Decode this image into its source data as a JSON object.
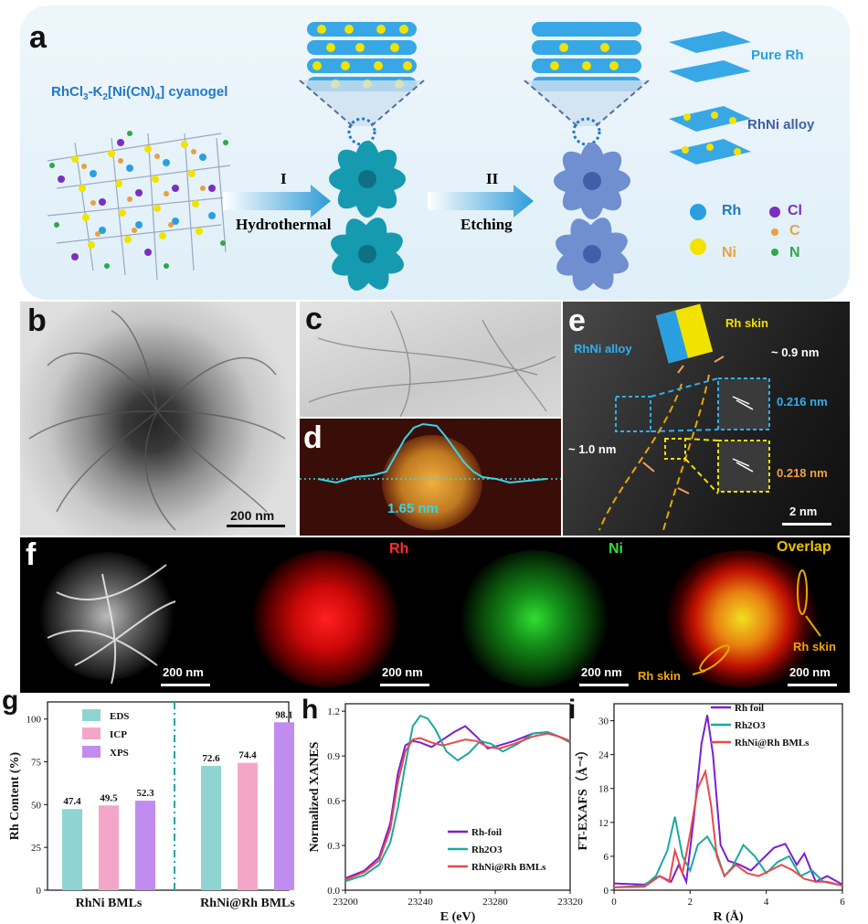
{
  "panel_a": {
    "letter": "a",
    "precursor_label": "RhCl3-K2[Ni(CN)4] cyanogel",
    "step1_roman": "I",
    "step1_label": "Hydrothermal",
    "step2_roman": "II",
    "step2_label": "Etching",
    "legend_pure": "Pure Rh",
    "legend_alloy": "RhNi alloy",
    "atoms": {
      "rh": "Rh",
      "ni": "Ni",
      "cl": "Cl",
      "c": "C",
      "n": "N"
    },
    "colors": {
      "rh": "#2a9fe0",
      "ni": "#f1e200",
      "cl": "#7a2fc0",
      "c": "#e8a040",
      "n": "#2ea84a",
      "title_blue": "#1f78c8"
    }
  },
  "panel_b": {
    "letter": "b",
    "scale": "200 nm"
  },
  "panel_c": {
    "letter": "c"
  },
  "panel_d": {
    "letter": "d",
    "thickness": "1.65 nm"
  },
  "panel_e": {
    "letter": "e",
    "alloy": "RhNi alloy",
    "skin": "Rh skin",
    "skin_thick": "~ 0.9 nm",
    "edge_thick": "~ 1.0 nm",
    "d1": "0.216 nm",
    "d2": "0.218 nm",
    "scale": "2 nm"
  },
  "panel_f": {
    "letter": "f",
    "maps": [
      "",
      "Rh",
      "Ni",
      "Overlap"
    ],
    "scale": "200 nm",
    "skin_label_1": "Rh skin",
    "skin_label_2": "Rh skin"
  },
  "chart_data": [
    {
      "type": "bar",
      "panel": "g",
      "categories": [
        "RhNi BMLs",
        "RhNi@Rh BMLs"
      ],
      "series": [
        {
          "name": "EDS",
          "values": [
            47.4,
            72.6
          ],
          "color": "#8fd3d3"
        },
        {
          "name": "ICP",
          "values": [
            49.5,
            74.4
          ],
          "color": "#f4a6c9"
        },
        {
          "name": "XPS",
          "values": [
            52.3,
            98.1
          ],
          "color": "#c08cf0"
        }
      ],
      "ylabel": "Rh Content (%)",
      "ylim": [
        0,
        110
      ],
      "yticks": [
        0,
        25,
        50,
        75,
        100
      ],
      "value_labels": [
        "47.4",
        "49.5",
        "52.3",
        "72.6",
        "74.4",
        "98.1"
      ]
    },
    {
      "type": "line",
      "panel": "h",
      "xlabel": "E (eV)",
      "ylabel": "Normalized XANES",
      "xlim": [
        23200,
        23320
      ],
      "ylim": [
        0,
        1.25
      ],
      "xticks": [
        23200,
        23240,
        23280,
        23320
      ],
      "yticks": [
        0.0,
        0.3,
        0.6,
        0.9,
        1.2
      ],
      "series": [
        {
          "name": "Rh-foil",
          "color": "#7b1fd0",
          "x": [
            23200,
            23210,
            23218,
            23224,
            23228,
            23232,
            23236,
            23240,
            23246,
            23252,
            23258,
            23264,
            23270,
            23276,
            23282,
            23290,
            23300,
            23308,
            23314,
            23320
          ],
          "y": [
            0.08,
            0.13,
            0.22,
            0.45,
            0.78,
            0.97,
            1.0,
            0.99,
            0.96,
            1.01,
            1.06,
            1.1,
            1.03,
            0.95,
            0.97,
            1.0,
            1.05,
            1.06,
            1.03,
            1.0
          ]
        },
        {
          "name": "Rh2O3",
          "color": "#1aa9a0",
          "x": [
            23200,
            23210,
            23218,
            23224,
            23228,
            23232,
            23236,
            23240,
            23244,
            23248,
            23254,
            23260,
            23266,
            23272,
            23278,
            23284,
            23292,
            23300,
            23308,
            23314,
            23320
          ],
          "y": [
            0.06,
            0.1,
            0.17,
            0.32,
            0.55,
            0.84,
            1.1,
            1.17,
            1.15,
            1.08,
            0.93,
            0.87,
            0.92,
            1.0,
            0.98,
            0.93,
            0.98,
            1.05,
            1.06,
            1.03,
            0.99
          ]
        },
        {
          "name": "RhNi@Rh BMLs",
          "color": "#e84a4a",
          "x": [
            23200,
            23210,
            23218,
            23224,
            23228,
            23232,
            23236,
            23240,
            23246,
            23252,
            23258,
            23264,
            23270,
            23276,
            23282,
            23290,
            23300,
            23308,
            23314,
            23320
          ],
          "y": [
            0.07,
            0.12,
            0.2,
            0.41,
            0.72,
            0.93,
            1.01,
            1.02,
            0.99,
            0.97,
            0.99,
            1.01,
            1.0,
            0.96,
            0.95,
            0.98,
            1.03,
            1.05,
            1.03,
            1.0
          ]
        }
      ]
    },
    {
      "type": "line",
      "panel": "i",
      "xlabel": "R (Å)",
      "ylabel": "FT-EXAFS（Å⁻⁴）",
      "xlim": [
        0,
        6
      ],
      "ylim": [
        0,
        33
      ],
      "xticks": [
        0,
        2,
        4,
        6
      ],
      "yticks": [
        0,
        6,
        12,
        18,
        24,
        30
      ],
      "series": [
        {
          "name": "Rh foil",
          "color": "#7b1fd0",
          "x": [
            0,
            0.8,
            1.2,
            1.5,
            1.7,
            1.9,
            2.1,
            2.3,
            2.45,
            2.6,
            2.8,
            3.0,
            3.3,
            3.6,
            3.9,
            4.2,
            4.5,
            4.8,
            5.0,
            5.3,
            5.6,
            6.0
          ],
          "y": [
            1.2,
            1.0,
            2.5,
            1.5,
            4.5,
            1.5,
            13,
            26,
            31,
            24,
            8,
            5.2,
            4.5,
            3.5,
            5.5,
            7.5,
            8.2,
            4.5,
            6.5,
            1.5,
            2.5,
            1.0
          ]
        },
        {
          "name": "Rh2O3",
          "color": "#1aa9a0",
          "x": [
            0,
            0.8,
            1.1,
            1.4,
            1.6,
            1.8,
            2.0,
            2.2,
            2.45,
            2.7,
            2.9,
            3.1,
            3.4,
            3.7,
            4.0,
            4.3,
            4.6,
            4.9,
            5.2,
            5.5,
            6.0
          ],
          "y": [
            0.5,
            0.8,
            2.5,
            7,
            13,
            6,
            3.5,
            8,
            9.5,
            6.5,
            2.5,
            4,
            8,
            6,
            3,
            5,
            6,
            2.5,
            3.5,
            1.5,
            0.8
          ]
        },
        {
          "name": "RhNi@Rh BMLs",
          "color": "#e84a4a",
          "x": [
            0,
            0.8,
            1.2,
            1.45,
            1.6,
            1.8,
            2.0,
            2.2,
            2.4,
            2.55,
            2.7,
            2.9,
            3.2,
            3.5,
            3.8,
            4.1,
            4.4,
            4.7,
            5.0,
            5.3,
            5.6,
            6.0
          ],
          "y": [
            0.5,
            0.6,
            2.5,
            1.5,
            7,
            3,
            10,
            18,
            21,
            15,
            6,
            2.5,
            4.5,
            3,
            2.5,
            3.5,
            4.5,
            3.5,
            2,
            1.5,
            1.5,
            0.8
          ]
        }
      ]
    }
  ]
}
